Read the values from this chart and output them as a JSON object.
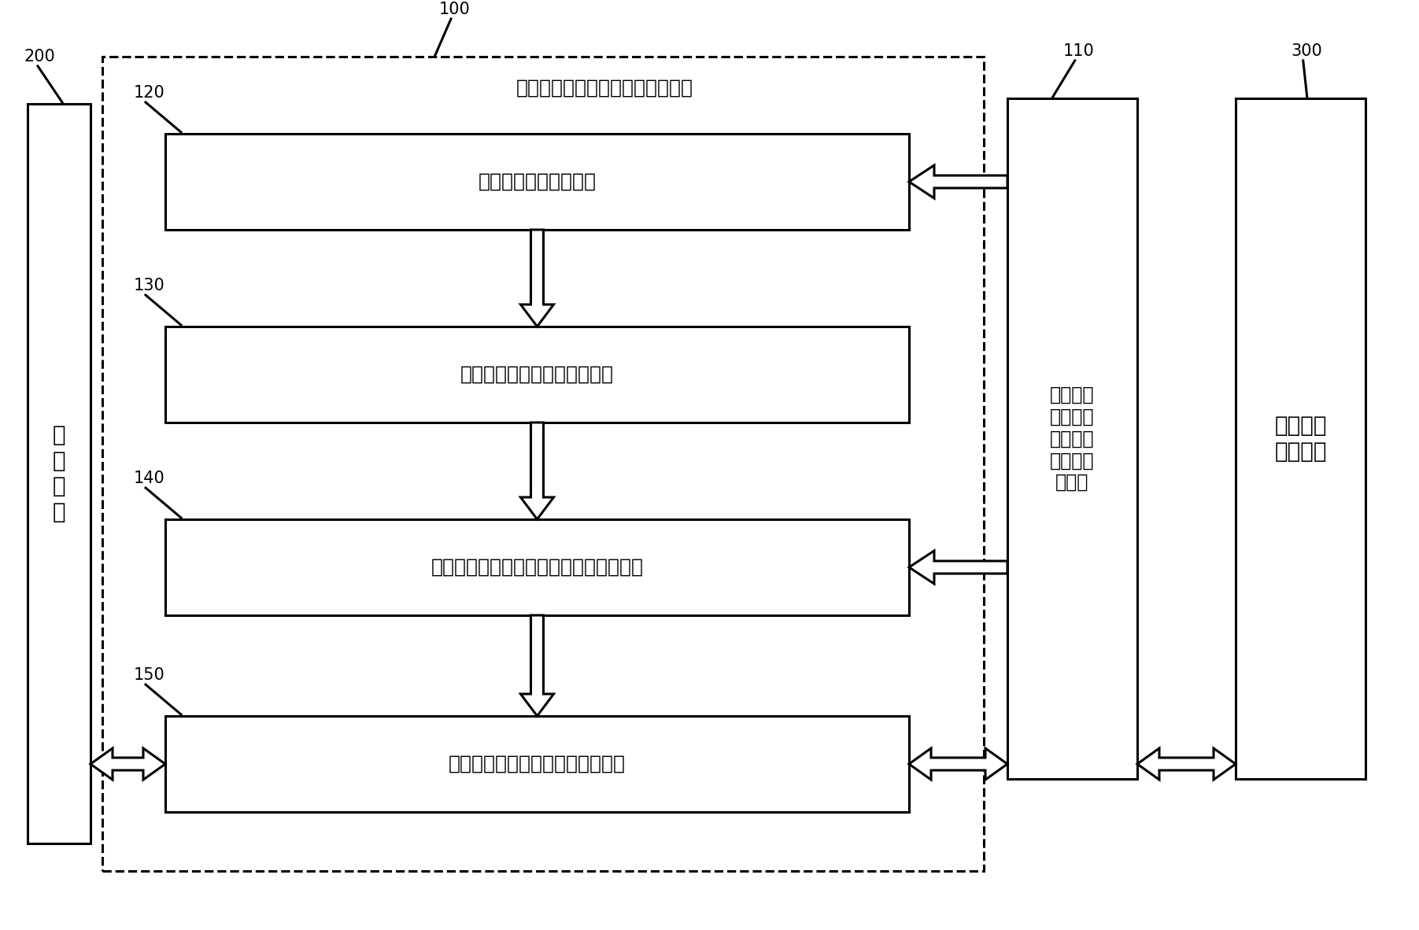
{
  "bg_color": "#ffffff",
  "line_color": "#000000",
  "fig_width": 18.03,
  "fig_height": 11.82,
  "label_200": "200",
  "label_100": "100",
  "label_110": "110",
  "label_300": "300",
  "label_120": "120",
  "label_130": "130",
  "label_140": "140",
  "label_150": "150",
  "text_dianli": "电\n力\n市\n场",
  "text_mubiao": "目标客户\n能量系统",
  "text_system_title": "基于机器学习的能量协同管理系统",
  "text_box120": "能量结构分析辅助模块",
  "text_box130": "电气拓扑与业务拓扑编制模块",
  "text_box140": "基于机器学习算法的能量流数字孪生模块",
  "text_box150": "基于机器学习的能量协同控制模块",
  "text_box110": "基于低功\n耗广域物\n联网的精\n细计量控\n制模块",
  "font_size_label": 15,
  "font_size_box": 18,
  "font_size_side": 20,
  "font_size_title": 18,
  "lw": 2.2
}
